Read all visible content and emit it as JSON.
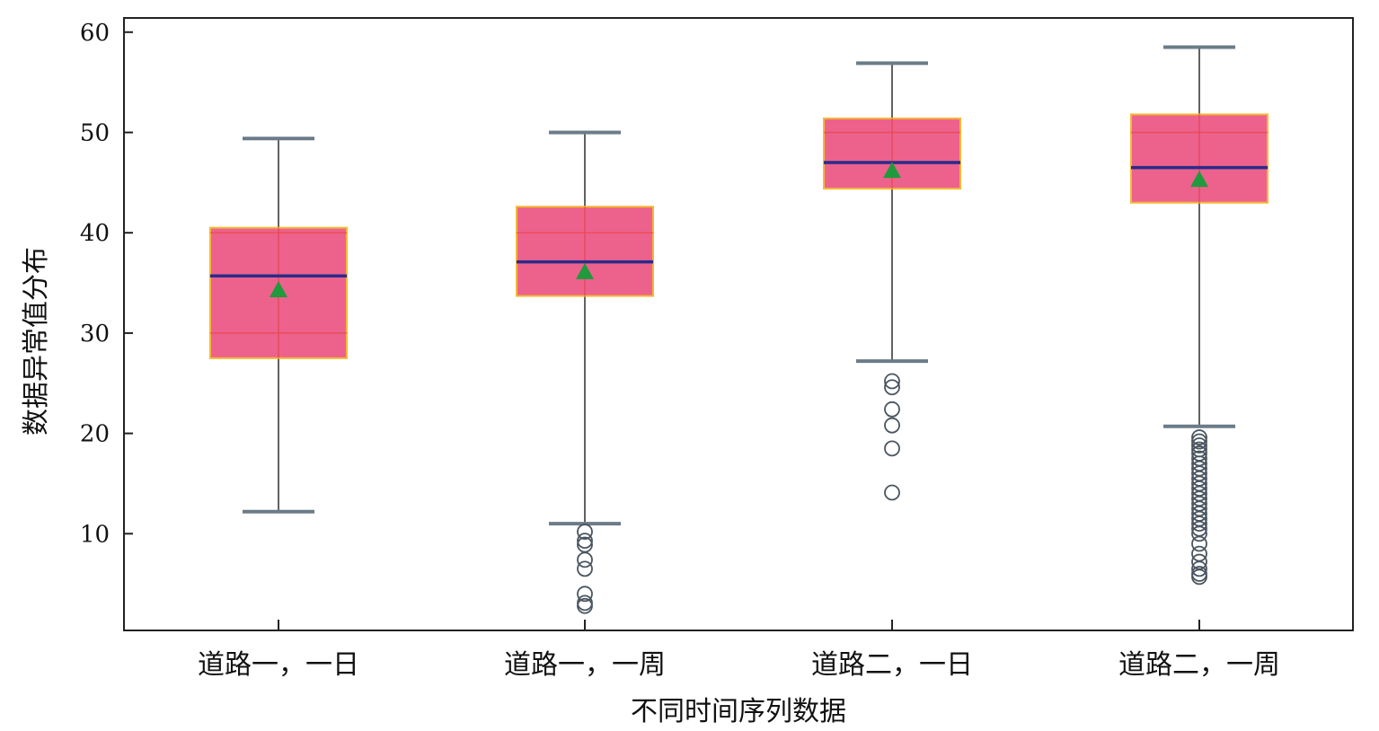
{
  "chart_data": {
    "type": "box",
    "title": "",
    "xlabel": "不同时间序列数据",
    "ylabel": "数据异常值分布",
    "ylim": [
      0,
      60
    ],
    "yticks": [
      10,
      20,
      30,
      40,
      50,
      60
    ],
    "grid": true,
    "categories": [
      "道路一，一日",
      "道路一，一周",
      "道路二，一日",
      "道路二，一周"
    ],
    "boxes": [
      {
        "whisker_low": 12.2,
        "q1": 27.5,
        "median": 35.7,
        "q3": 40.5,
        "whisker_high": 49.4,
        "mean": 34.2,
        "outliers": []
      },
      {
        "whisker_low": 11.0,
        "q1": 33.7,
        "median": 37.1,
        "q3": 42.6,
        "whisker_high": 50.0,
        "mean": 36.0,
        "outliers": [
          10.2,
          9.3,
          8.9,
          7.4,
          6.5,
          4.0,
          3.1,
          2.8
        ]
      },
      {
        "whisker_low": 27.2,
        "q1": 44.4,
        "median": 47.0,
        "q3": 51.4,
        "whisker_high": 56.9,
        "mean": 46.1,
        "outliers": [
          25.2,
          24.6,
          22.4,
          20.8,
          18.5,
          14.1
        ]
      },
      {
        "whisker_low": 20.7,
        "q1": 43.0,
        "median": 46.5,
        "q3": 51.8,
        "whisker_high": 58.5,
        "mean": 45.2,
        "outliers": [
          19.6,
          19.2,
          18.8,
          18.4,
          18.0,
          17.5,
          17.0,
          16.5,
          16.0,
          15.5,
          15.0,
          14.5,
          14.0,
          13.5,
          13.0,
          12.5,
          12.0,
          11.5,
          11.0,
          10.5,
          10.0,
          9.0,
          8.0,
          7.2,
          6.5,
          6.0,
          5.7
        ]
      }
    ]
  },
  "colors": {
    "box_fill": "#ec5a87",
    "box_border": "#f5b52a",
    "median": "#2b2b8a",
    "mean_marker": "#1f9a3c",
    "whisker": "#3a3a3a",
    "cap": "#6b7c88",
    "outlier": "#4a5560",
    "grid": "#ee4444"
  }
}
